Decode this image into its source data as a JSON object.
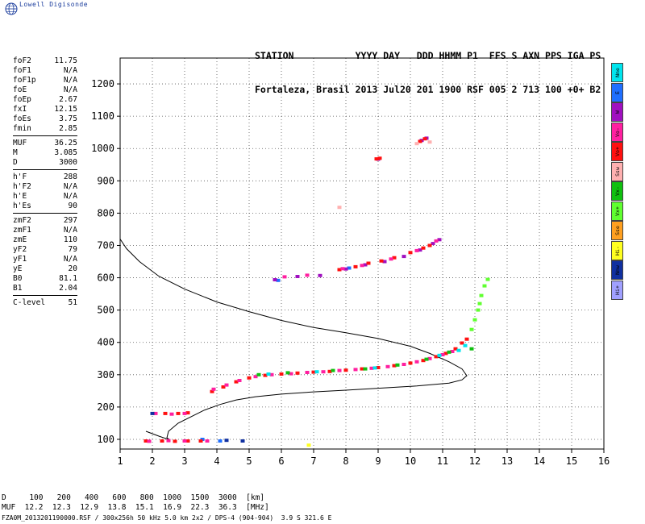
{
  "brand": "Lowell Digisonde",
  "station": {
    "header": "STATION           YYYY DAY   DDD HHMM P1  FFS S AXN PPS IGA PS",
    "values": "Fortaleza, Brasil 2013 Jul20 201 1900 RSF 005 2 713 100 +0+ B2"
  },
  "params": [
    {
      "label": "foF2",
      "value": "11.75"
    },
    {
      "label": "foF1",
      "value": "N/A"
    },
    {
      "label": "foF1p",
      "value": "N/A"
    },
    {
      "label": "foE",
      "value": "N/A"
    },
    {
      "label": "foEp",
      "value": "2.67"
    },
    {
      "label": "fxI",
      "value": "12.15"
    },
    {
      "label": "foEs",
      "value": "3.75"
    },
    {
      "label": "fmin",
      "value": "2.85"
    },
    {
      "label": "MUF",
      "value": "36.25"
    },
    {
      "label": "M",
      "value": "3.085"
    },
    {
      "label": "D",
      "value": "3000"
    },
    {
      "label": "h'F",
      "value": "288"
    },
    {
      "label": "h'F2",
      "value": "N/A"
    },
    {
      "label": "h'E",
      "value": "N/A"
    },
    {
      "label": "h'Es",
      "value": "90"
    },
    {
      "label": "zmF2",
      "value": "297"
    },
    {
      "label": "zmF1",
      "value": "N/A"
    },
    {
      "label": "zmE",
      "value": "110"
    },
    {
      "label": "yF2",
      "value": "79"
    },
    {
      "label": "yF1",
      "value": "N/A"
    },
    {
      "label": "yE",
      "value": "20"
    },
    {
      "label": "B0",
      "value": "81.1"
    },
    {
      "label": "B1",
      "value": "2.04"
    },
    {
      "label": "C-level",
      "value": "51"
    }
  ],
  "legend": [
    {
      "label": "Nne",
      "color": "#00e5ee"
    },
    {
      "label": "E",
      "color": "#1f6fff"
    },
    {
      "label": "W",
      "color": "#a010c0"
    },
    {
      "label": "Vo-",
      "color": "#ff1fa0"
    },
    {
      "label": "Vo+",
      "color": "#ff1010"
    },
    {
      "label": "Ssw",
      "color": "#ffb0b0"
    },
    {
      "label": "Vx-",
      "color": "#10c010"
    },
    {
      "label": "Vx+",
      "color": "#60ff30"
    },
    {
      "label": "Sse",
      "color": "#ffa020"
    },
    {
      "label": "Hi-",
      "color": "#ffff20"
    },
    {
      "label": "Nnw",
      "color": "#1030a0"
    },
    {
      "label": "Hi+",
      "color": "#a0a0ff"
    }
  ],
  "muf_table": {
    "d_row": "D     100   200   400   600   800  1000  1500  3000  [km]",
    "muf_row": "MUF  12.2  12.3  12.9  13.8  15.1  16.9  22.3  36.3  [MHz]"
  },
  "footer": "FZA0M_2013201190000.RSF / 300x256h 50 kHz 5.0 km 2x2 / DPS-4 (904-904)  3.9 S 321.6 E",
  "chart_data": {
    "type": "scatter",
    "title": "",
    "xlabel": "",
    "ylabel": "",
    "xlim": [
      1,
      16
    ],
    "ylim": [
      70,
      1280
    ],
    "xticks": [
      "1",
      "2",
      "3",
      "4",
      "5",
      "6",
      "7",
      "8",
      "9",
      "10",
      "11",
      "12",
      "13",
      "14",
      "15",
      "16"
    ],
    "yticks": [
      "100",
      "200",
      "300",
      "400",
      "500",
      "600",
      "700",
      "800",
      "900",
      "1000",
      "1100",
      "1200"
    ],
    "grid": true,
    "series": [
      {
        "mode": "Vo+",
        "color": "#ff1010",
        "points": [
          [
            3.85,
            248
          ],
          [
            4.2,
            262
          ],
          [
            4.6,
            278
          ],
          [
            5.0,
            290
          ],
          [
            5.5,
            298
          ],
          [
            6.0,
            302
          ],
          [
            6.5,
            305
          ],
          [
            7.0,
            308
          ],
          [
            7.5,
            310
          ],
          [
            8.0,
            314
          ],
          [
            8.5,
            318
          ],
          [
            9.0,
            322
          ],
          [
            9.5,
            328
          ],
          [
            10.0,
            336
          ],
          [
            10.4,
            344
          ],
          [
            10.8,
            356
          ],
          [
            11.1,
            366
          ],
          [
            11.4,
            380
          ],
          [
            11.6,
            398
          ],
          [
            11.75,
            410
          ]
        ]
      },
      {
        "mode": "Vo-",
        "color": "#ff1fa0",
        "points": [
          [
            3.9,
            255
          ],
          [
            4.3,
            268
          ],
          [
            4.7,
            282
          ],
          [
            5.2,
            294
          ],
          [
            5.7,
            300
          ],
          [
            6.3,
            303
          ],
          [
            6.8,
            307
          ],
          [
            7.3,
            309
          ],
          [
            7.8,
            313
          ],
          [
            8.3,
            316
          ],
          [
            8.8,
            320
          ],
          [
            9.3,
            325
          ],
          [
            9.8,
            332
          ],
          [
            10.2,
            340
          ],
          [
            10.6,
            350
          ],
          [
            11.0,
            362
          ],
          [
            11.3,
            372
          ]
        ]
      },
      {
        "mode": "Vx-",
        "color": "#10c010",
        "points": [
          [
            5.3,
            300
          ],
          [
            6.2,
            306
          ],
          [
            7.6,
            313
          ],
          [
            8.6,
            318
          ],
          [
            9.6,
            330
          ],
          [
            10.5,
            348
          ],
          [
            11.2,
            370
          ],
          [
            11.9,
            380
          ]
        ]
      },
      {
        "mode": "Vx+",
        "color": "#60ff30",
        "points": [
          [
            11.9,
            440
          ],
          [
            12.0,
            470
          ],
          [
            12.1,
            500
          ],
          [
            12.15,
            520
          ],
          [
            12.2,
            545
          ],
          [
            12.3,
            575
          ],
          [
            12.4,
            595
          ]
        ]
      },
      {
        "mode": "Nne",
        "color": "#00e5ee",
        "points": [
          [
            5.6,
            302
          ],
          [
            7.1,
            309
          ],
          [
            8.9,
            321
          ],
          [
            10.9,
            360
          ],
          [
            11.5,
            375
          ],
          [
            11.7,
            390
          ]
        ]
      },
      {
        "mode": "E",
        "color": "#1f6fff",
        "points": [
          [
            4.1,
            95
          ],
          [
            3.55,
            100
          ],
          [
            5.9,
            592
          ],
          [
            8.1,
            630
          ]
        ]
      },
      {
        "mode": "W",
        "color": "#a010c0",
        "points": [
          [
            5.8,
            594
          ],
          [
            6.5,
            604
          ],
          [
            7.2,
            607
          ],
          [
            8.0,
            627
          ],
          [
            8.6,
            640
          ],
          [
            9.2,
            650
          ],
          [
            9.8,
            666
          ],
          [
            10.3,
            686
          ],
          [
            10.7,
            706
          ],
          [
            10.9,
            718
          ],
          [
            10.35,
            1025
          ],
          [
            10.5,
            1032
          ],
          [
            9.0,
            967
          ]
        ]
      },
      {
        "mode": "Vo+",
        "color": "#ff1010",
        "points": [
          [
            7.8,
            625
          ],
          [
            8.3,
            634
          ],
          [
            8.7,
            645
          ],
          [
            9.1,
            652
          ],
          [
            9.5,
            662
          ],
          [
            10.0,
            678
          ],
          [
            10.4,
            692
          ],
          [
            10.6,
            700
          ],
          [
            8.95,
            968
          ],
          [
            9.05,
            970
          ],
          [
            10.3,
            1022
          ],
          [
            10.45,
            1030
          ],
          [
            1.8,
            95
          ],
          [
            2.3,
            95
          ],
          [
            2.7,
            94
          ],
          [
            3.1,
            95
          ],
          [
            3.5,
            95
          ],
          [
            2.4,
            180
          ],
          [
            2.8,
            180
          ],
          [
            3.1,
            182
          ]
        ]
      },
      {
        "mode": "Vo-",
        "color": "#ff1fa0",
        "points": [
          [
            6.1,
            603
          ],
          [
            6.8,
            608
          ],
          [
            7.9,
            628
          ],
          [
            8.5,
            638
          ],
          [
            9.4,
            658
          ],
          [
            10.2,
            684
          ],
          [
            10.8,
            714
          ],
          [
            1.9,
            94
          ],
          [
            2.5,
            96
          ],
          [
            3.0,
            95
          ],
          [
            3.7,
            95
          ],
          [
            2.1,
            180
          ],
          [
            2.6,
            178
          ],
          [
            3.0,
            180
          ]
        ]
      },
      {
        "mode": "Ssw",
        "color": "#ffb0b0",
        "points": [
          [
            7.8,
            818
          ],
          [
            10.6,
            1020
          ],
          [
            10.2,
            1015
          ]
        ]
      },
      {
        "mode": "Hi-",
        "color": "#ffff20",
        "points": [
          [
            6.85,
            82
          ]
        ]
      },
      {
        "mode": "Nnw",
        "color": "#1030a0",
        "points": [
          [
            4.3,
            97
          ],
          [
            4.8,
            95
          ],
          [
            2.0,
            180
          ]
        ]
      }
    ],
    "profile": [
      [
        1.0,
        720
      ],
      [
        1.2,
        690
      ],
      [
        1.6,
        650
      ],
      [
        2.2,
        605
      ],
      [
        3.0,
        565
      ],
      [
        4.0,
        525
      ],
      [
        5.0,
        495
      ],
      [
        6.0,
        468
      ],
      [
        7.0,
        446
      ],
      [
        8.0,
        430
      ],
      [
        9.0,
        412
      ],
      [
        10.0,
        388
      ],
      [
        10.6,
        366
      ],
      [
        11.2,
        340
      ],
      [
        11.6,
        318
      ],
      [
        11.75,
        297
      ],
      [
        11.6,
        284
      ],
      [
        11.2,
        274
      ],
      [
        10.2,
        265
      ],
      [
        9.0,
        258
      ],
      [
        8.0,
        252
      ],
      [
        7.0,
        247
      ],
      [
        6.0,
        240
      ],
      [
        5.2,
        232
      ],
      [
        4.6,
        222
      ],
      [
        4.1,
        208
      ],
      [
        3.6,
        190
      ],
      [
        3.2,
        170
      ],
      [
        2.8,
        150
      ],
      [
        2.5,
        125
      ],
      [
        2.45,
        105
      ],
      [
        2.55,
        98
      ],
      [
        2.2,
        110
      ],
      [
        1.8,
        125
      ]
    ]
  }
}
